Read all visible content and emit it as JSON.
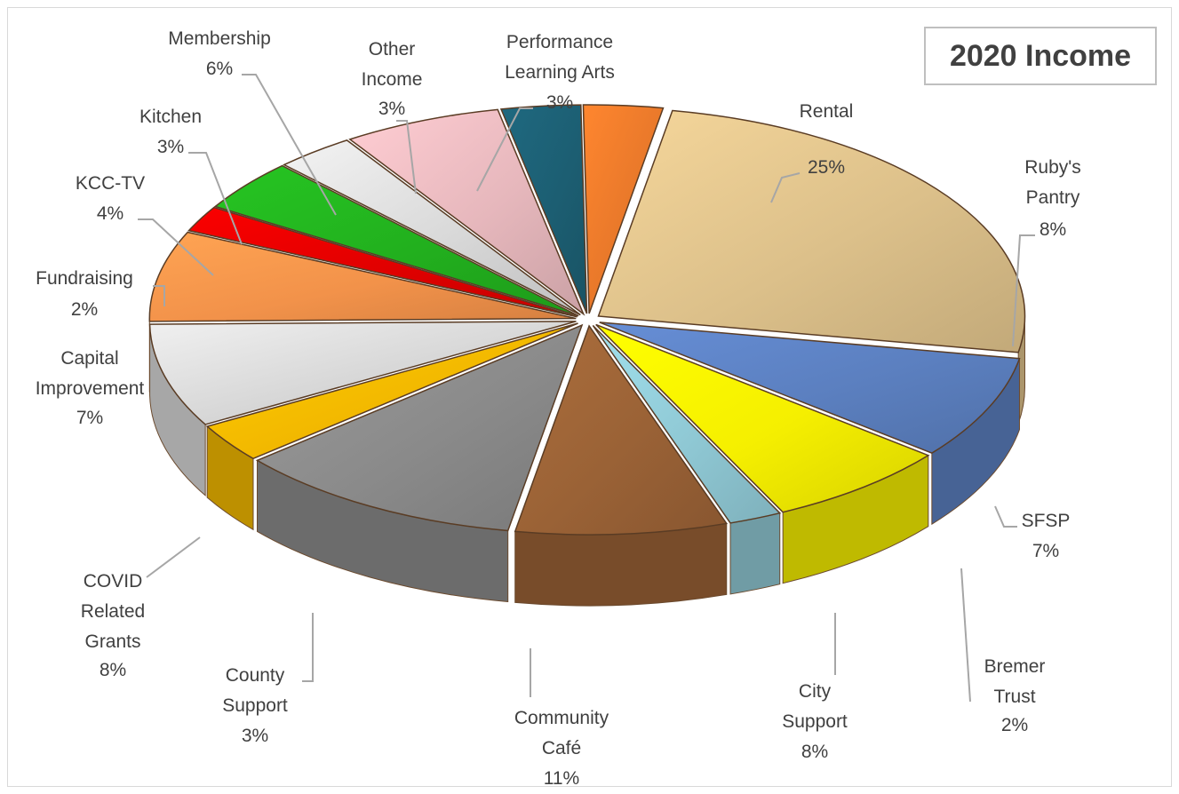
{
  "colors": {
    "rental": "#dcc08a",
    "rubys_pantry": "#5b7fbf",
    "sfsp": "#f5ef00",
    "bremer_trust": "#8fc8d4",
    "city_support": "#9a6236",
    "community_cafe": "#8a8a8a",
    "county_support": "#f2b800",
    "covid_related_grants": "#d6d6d6",
    "capital_improvement": "#f2924a",
    "fundraising": "#e00000",
    "kcc_tv": "#22b01e",
    "kitchen": "#d9d9d9",
    "membership": "#e6b7bc",
    "other_income": "#1c5e72",
    "performance_learning_arts": "#e8782a"
  },
  "chart_data": {
    "type": "pie",
    "title": "2020 Income",
    "exploded": true,
    "three_d": true,
    "slices": [
      {
        "key": "rental",
        "lines": [
          "Rental"
        ],
        "pct_label": "25%",
        "value": 25
      },
      {
        "key": "rubys_pantry",
        "lines": [
          "Ruby's",
          "Pantry"
        ],
        "pct_label": "8%",
        "value": 8
      },
      {
        "key": "sfsp",
        "lines": [
          "SFSP"
        ],
        "pct_label": "7%",
        "value": 7
      },
      {
        "key": "bremer_trust",
        "lines": [
          "Bremer",
          "Trust"
        ],
        "pct_label": "2%",
        "value": 2
      },
      {
        "key": "city_support",
        "lines": [
          "City",
          "Support"
        ],
        "pct_label": "8%",
        "value": 8
      },
      {
        "key": "community_cafe",
        "lines": [
          "Community",
          "Café"
        ],
        "pct_label": "11%",
        "value": 11
      },
      {
        "key": "county_support",
        "lines": [
          "County",
          "Support"
        ],
        "pct_label": "3%",
        "value": 3
      },
      {
        "key": "covid_related_grants",
        "lines": [
          "COVID",
          "Related",
          "Grants"
        ],
        "pct_label": "8%",
        "value": 8
      },
      {
        "key": "capital_improvement",
        "lines": [
          "Capital",
          "Improvement"
        ],
        "pct_label": "7%",
        "value": 7
      },
      {
        "key": "fundraising",
        "lines": [
          "Fundraising"
        ],
        "pct_label": "2%",
        "value": 2
      },
      {
        "key": "kcc_tv",
        "lines": [
          "KCC-TV"
        ],
        "pct_label": "4%",
        "value": 4
      },
      {
        "key": "kitchen",
        "lines": [
          "Kitchen"
        ],
        "pct_label": "3%",
        "value": 3
      },
      {
        "key": "membership",
        "lines": [
          "Membership"
        ],
        "pct_label": "6%",
        "value": 6
      },
      {
        "key": "other_income",
        "lines": [
          "Other",
          "Income"
        ],
        "pct_label": "3%",
        "value": 3
      },
      {
        "key": "performance_learning_arts",
        "lines": [
          "Performance",
          "Learning Arts"
        ],
        "pct_label": "3%",
        "value": 3
      }
    ]
  }
}
